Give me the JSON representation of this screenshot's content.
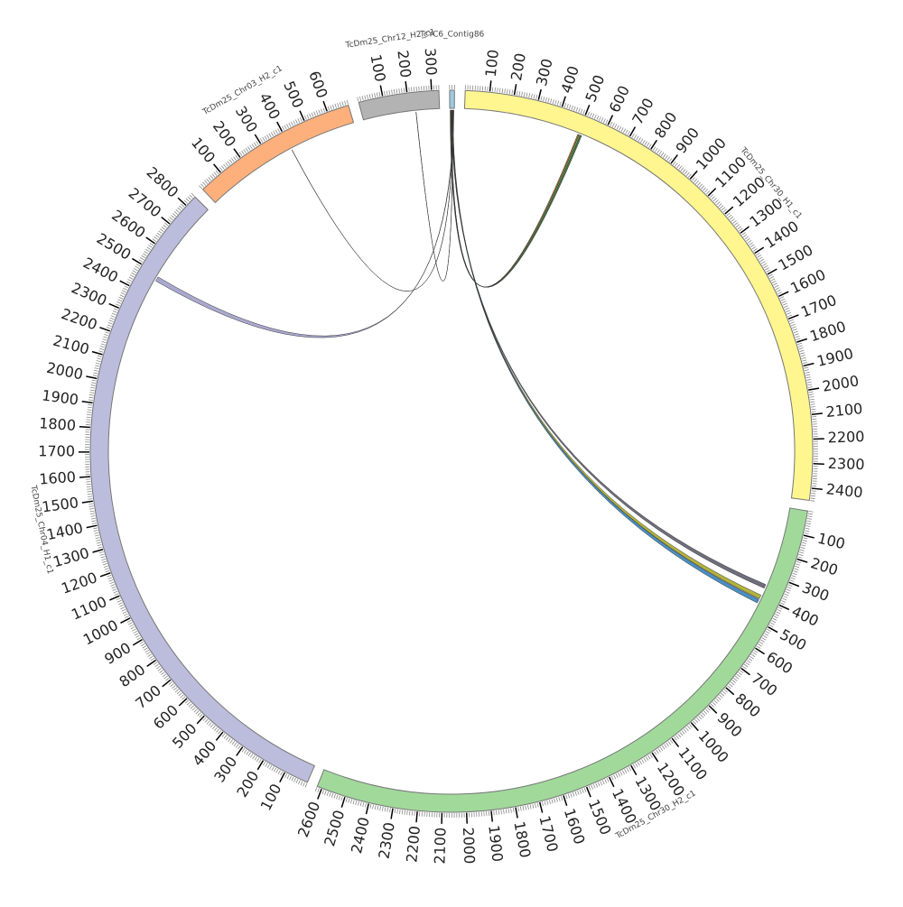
{
  "diagram": {
    "type": "circos",
    "tick_major_kb": 100,
    "tick_minor_kb": 10,
    "chromosomes": [
      {
        "name": "TcYC6_Contig86",
        "length_kb": 20,
        "color": "#9ecae1"
      },
      {
        "name": "TcDm25_Chr30_H1_c1",
        "length_kb": 2450,
        "color": "#fff68f"
      },
      {
        "name": "TcDm25_Chr30_H2_c1",
        "length_kb": 2620,
        "color": "#a1d99b"
      },
      {
        "name": "TcDm25_Chr04_H1_c1",
        "length_kb": 2850,
        "color": "#bcbddc"
      },
      {
        "name": "TcDm25_Chr03_H2_c1",
        "length_kb": 690,
        "color": "#fdb07c"
      },
      {
        "name": "TcDm25_Chr12_H2_c1",
        "length_kb": 330,
        "color": "#b3b3b3"
      }
    ],
    "links": [
      {
        "from": [
          "TcYC6_Contig86",
          2,
          4
        ],
        "to": [
          "TcDm25_Chr30_H1_c1",
          500,
          505
        ],
        "color": "#d95f02"
      },
      {
        "from": [
          "TcYC6_Contig86",
          4,
          6
        ],
        "to": [
          "TcDm25_Chr30_H1_c1",
          505,
          512
        ],
        "color": "#4a8a3a"
      },
      {
        "from": [
          "TcYC6_Contig86",
          6,
          7
        ],
        "to": [
          "TcDm25_Chr30_H1_c1",
          512,
          518
        ],
        "color": "#2e6b2e"
      },
      {
        "from": [
          "TcYC6_Contig86",
          8,
          10
        ],
        "to": [
          "TcDm25_Chr30_H2_c1",
          345,
          362
        ],
        "color": "#555566"
      },
      {
        "from": [
          "TcYC6_Contig86",
          10,
          12
        ],
        "to": [
          "TcDm25_Chr30_H2_c1",
          395,
          412
        ],
        "color": "#a6a61a"
      },
      {
        "from": [
          "TcYC6_Contig86",
          12,
          14
        ],
        "to": [
          "TcDm25_Chr30_H2_c1",
          415,
          432
        ],
        "color": "#2b7bb9"
      },
      {
        "from": [
          "TcYC6_Contig86",
          14,
          15
        ],
        "to": [
          "TcDm25_Chr12_H2_c1",
          228,
          229
        ],
        "color": "#8b2a2a"
      },
      {
        "from": [
          "TcYC6_Contig86",
          15,
          16
        ],
        "to": [
          "TcDm25_Chr03_H2_c1",
          400,
          401
        ],
        "color": "#333333"
      },
      {
        "from": [
          "TcYC6_Contig86",
          16,
          18
        ],
        "to": [
          "TcDm25_Chr04_H1_c1",
          2470,
          2490
        ],
        "color": "#9a9ac8"
      }
    ]
  }
}
